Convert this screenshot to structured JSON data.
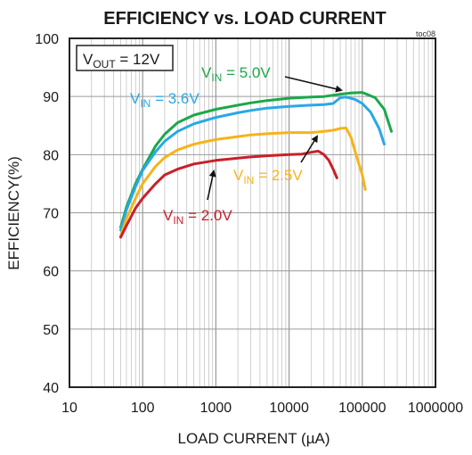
{
  "chart_data": {
    "type": "line",
    "title": "EFFICIENCY vs. LOAD CURRENT",
    "figure_id": "toc08",
    "xlabel": "LOAD CURRENT (µA)",
    "ylabel": "EFFICIENCY(%)",
    "x_scale": "log",
    "xlim": [
      10,
      1000000
    ],
    "ylim": [
      40,
      100
    ],
    "x_ticks": [
      10,
      100,
      1000,
      10000,
      100000,
      1000000
    ],
    "x_tick_labels": [
      "10",
      "100",
      "1000",
      "10000",
      "100000",
      "1000000"
    ],
    "y_ticks": [
      40,
      50,
      60,
      70,
      80,
      90,
      100
    ],
    "y_tick_labels": [
      "40",
      "50",
      "60",
      "70",
      "80",
      "90",
      "100"
    ],
    "grid": true,
    "condition_box": {
      "main": "V",
      "sub": "OUT",
      "rest": " = 12V"
    },
    "series": [
      {
        "name": "V_IN = 5.0V",
        "label_main": "V",
        "label_sub": "IN",
        "label_rest": " = 5.0V",
        "color": "#1ba84a",
        "x": [
          50,
          60,
          80,
          100,
          150,
          200,
          300,
          500,
          1000,
          2000,
          3000,
          5000,
          10000,
          20000,
          30000,
          50000,
          70000,
          100000,
          150000,
          200000,
          250000
        ],
        "y": [
          67.5,
          71.0,
          75.0,
          77.5,
          81.5,
          83.5,
          85.5,
          86.8,
          87.8,
          88.5,
          88.9,
          89.3,
          89.7,
          89.9,
          90.0,
          90.4,
          90.6,
          90.7,
          89.8,
          87.8,
          84.0
        ]
      },
      {
        "name": "V_IN = 3.6V",
        "label_main": "V",
        "label_sub": "IN",
        "label_rest": " = 3.6V",
        "color": "#2aa8e6",
        "x": [
          50,
          60,
          80,
          100,
          150,
          200,
          300,
          500,
          1000,
          2000,
          3000,
          5000,
          10000,
          20000,
          30000,
          40000,
          50000,
          60000,
          80000,
          100000,
          130000,
          170000,
          200000
        ],
        "y": [
          67.0,
          70.5,
          74.5,
          77.3,
          80.5,
          82.3,
          84.0,
          85.3,
          86.4,
          87.2,
          87.6,
          88.0,
          88.3,
          88.5,
          88.6,
          88.8,
          89.8,
          89.9,
          89.5,
          88.8,
          87.3,
          84.5,
          81.8
        ]
      },
      {
        "name": "V_IN = 2.5V",
        "label_main": "V",
        "label_sub": "IN",
        "label_rest": " = 2.5V",
        "color": "#f6b41a",
        "x": [
          50,
          60,
          80,
          100,
          150,
          200,
          300,
          500,
          1000,
          2000,
          3000,
          5000,
          10000,
          20000,
          30000,
          40000,
          50000,
          60000,
          70000,
          80000,
          100000,
          110000
        ],
        "y": [
          66.0,
          69.0,
          72.5,
          75.0,
          78.0,
          79.5,
          80.8,
          81.8,
          82.6,
          83.1,
          83.4,
          83.6,
          83.8,
          83.8,
          84.0,
          84.2,
          84.5,
          84.6,
          83.0,
          80.5,
          76.5,
          74.0
        ]
      },
      {
        "name": "V_IN = 2.0V",
        "label_main": "V",
        "label_sub": "IN",
        "label_rest": " = 2.0V",
        "color": "#c8202a",
        "x": [
          50,
          60,
          80,
          100,
          150,
          200,
          300,
          500,
          1000,
          2000,
          3000,
          5000,
          10000,
          15000,
          20000,
          25000,
          30000,
          35000,
          40000,
          45000
        ],
        "y": [
          65.8,
          67.8,
          70.8,
          72.5,
          75.0,
          76.5,
          77.5,
          78.4,
          79.0,
          79.4,
          79.6,
          79.8,
          80.0,
          80.1,
          80.4,
          80.6,
          80.0,
          79.0,
          77.5,
          76.0
        ]
      }
    ]
  }
}
